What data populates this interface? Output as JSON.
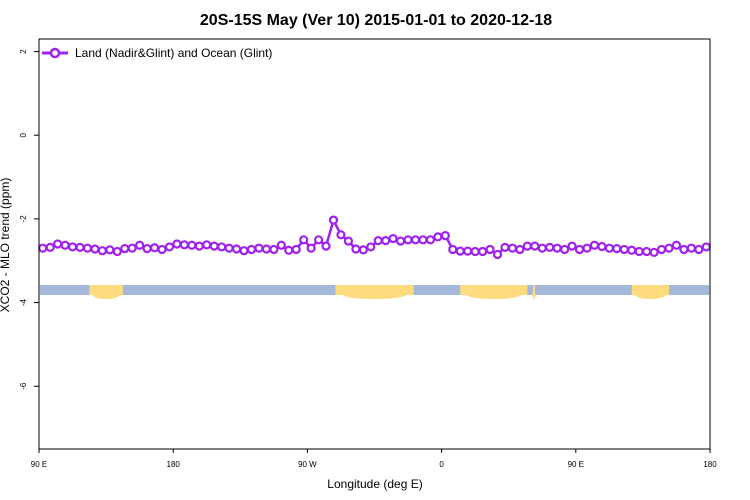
{
  "chart_data": {
    "type": "line",
    "title": "20S-15S May (Ver 10)   2015-01-01 to 2020-12-18",
    "xlabel": "Longitude (deg E)",
    "ylabel": "XCO2 - MLO trend (ppm)",
    "xlim": [
      90,
      450
    ],
    "ylim": [
      -7.5,
      2.3
    ],
    "x_ticks": [
      {
        "value": 90,
        "label": "90 E"
      },
      {
        "value": 162,
        "label": "180"
      },
      {
        "value": 234,
        "label": "90 W"
      },
      {
        "value": 306,
        "label": "0"
      },
      {
        "value": 378,
        "label": "90 E"
      },
      {
        "value": 450,
        "label": "180"
      }
    ],
    "y_ticks": [
      {
        "value": 2,
        "label": "2"
      },
      {
        "value": 0,
        "label": "0"
      },
      {
        "value": -2,
        "label": "-2"
      },
      {
        "value": -4,
        "label": "-4"
      },
      {
        "value": -6,
        "label": "-6"
      }
    ],
    "legend_position": "top-left",
    "colors": {
      "series": "#a020f0",
      "ocean": "#a4b8d9",
      "land": "#fddb7e"
    },
    "series": [
      {
        "name": "Land (Nadir&Glint) and Ocean (Glint)",
        "x": [
          92,
          96,
          100,
          104,
          108,
          112,
          116,
          120,
          124,
          128,
          132,
          136,
          140,
          144,
          148,
          152,
          156,
          160,
          164,
          168,
          172,
          176,
          180,
          184,
          188,
          192,
          196,
          200,
          204,
          208,
          212,
          216,
          220,
          224,
          228,
          232,
          236,
          240,
          244,
          248,
          252,
          256,
          260,
          264,
          268,
          272,
          276,
          280,
          284,
          288,
          292,
          296,
          300,
          304,
          308,
          312,
          316,
          320,
          324,
          328,
          332,
          336,
          340,
          344,
          348,
          352,
          356,
          360,
          364,
          368,
          372,
          376,
          380,
          384,
          388,
          392,
          396,
          400,
          404,
          408,
          412,
          416,
          420,
          424,
          428,
          432,
          436,
          440,
          444,
          448
        ],
        "y": [
          -2.7,
          -2.68,
          -2.6,
          -2.63,
          -2.67,
          -2.68,
          -2.7,
          -2.72,
          -2.76,
          -2.74,
          -2.78,
          -2.71,
          -2.7,
          -2.63,
          -2.71,
          -2.69,
          -2.73,
          -2.67,
          -2.6,
          -2.62,
          -2.63,
          -2.65,
          -2.62,
          -2.65,
          -2.67,
          -2.7,
          -2.72,
          -2.76,
          -2.73,
          -2.7,
          -2.72,
          -2.73,
          -2.63,
          -2.75,
          -2.73,
          -2.5,
          -2.7,
          -2.5,
          -2.65,
          -2.03,
          -2.38,
          -2.53,
          -2.72,
          -2.74,
          -2.67,
          -2.52,
          -2.52,
          -2.47,
          -2.53,
          -2.5,
          -2.5,
          -2.5,
          -2.5,
          -2.43,
          -2.4,
          -2.73,
          -2.77,
          -2.77,
          -2.78,
          -2.78,
          -2.73,
          -2.85,
          -2.68,
          -2.7,
          -2.73,
          -2.65,
          -2.65,
          -2.7,
          -2.68,
          -2.7,
          -2.73,
          -2.65,
          -2.73,
          -2.7,
          -2.63,
          -2.66,
          -2.7,
          -2.71,
          -2.73,
          -2.75,
          -2.78,
          -2.78,
          -2.8,
          -2.73,
          -2.7,
          -2.63,
          -2.73,
          -2.7,
          -2.73,
          -2.67
        ]
      }
    ],
    "surface_strip": {
      "y": -3.7,
      "land_ranges": [
        [
          117,
          135
        ],
        [
          249,
          291
        ],
        [
          316,
          352
        ],
        [
          355,
          356
        ],
        [
          408,
          428
        ]
      ]
    }
  }
}
